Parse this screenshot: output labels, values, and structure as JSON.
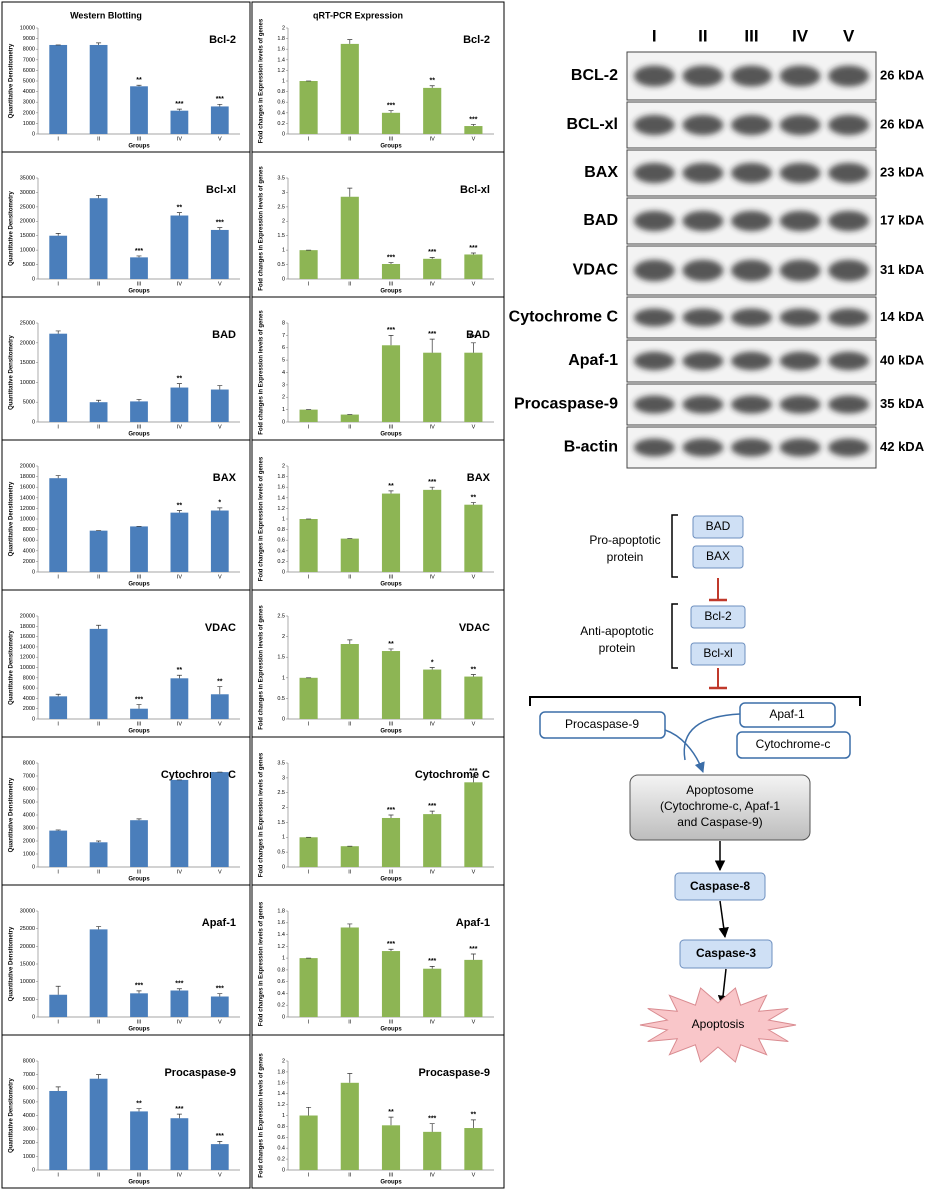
{
  "columns": [
    "Western Blotting",
    "qRT-PCR Expression"
  ],
  "chart_data": [
    {
      "type": "bar",
      "title": "Bcl-2",
      "y_label": "Quantitative Densitometry",
      "x_label": "Groups",
      "color": "#4a7ebb",
      "categories": [
        "I",
        "II",
        "III",
        "IV",
        "V"
      ],
      "values": [
        8400,
        8400,
        4500,
        2200,
        2600
      ],
      "errors": [
        0,
        200,
        100,
        150,
        200
      ],
      "annotations": [
        null,
        null,
        "**",
        "***",
        "***"
      ],
      "ylim": [
        0,
        10000
      ],
      "yticks": [
        0,
        1000,
        2000,
        3000,
        4000,
        5000,
        6000,
        7000,
        8000,
        9000,
        10000
      ]
    },
    {
      "type": "bar",
      "title": "Bcl-2",
      "y_label": "Fold changes in Expression levels of genes",
      "x_label": "Groups",
      "color": "#8db554",
      "categories": [
        "I",
        "II",
        "III",
        "IV",
        "V"
      ],
      "values": [
        1,
        1.7,
        0.4,
        0.87,
        0.15
      ],
      "errors": [
        0,
        0.08,
        0.04,
        0.04,
        0.03
      ],
      "annotations": [
        null,
        null,
        "***",
        "**",
        "***"
      ],
      "ylim": [
        0,
        2
      ],
      "yticks": [
        0,
        0.2,
        0.4,
        0.6,
        0.8,
        1,
        1.2,
        1.4,
        1.6,
        1.8,
        2
      ]
    },
    {
      "type": "bar",
      "title": "Bcl-xl",
      "y_label": "Quantitative Densitometry",
      "x_label": "Groups",
      "color": "#4a7ebb",
      "categories": [
        "I",
        "II",
        "III",
        "IV",
        "V"
      ],
      "values": [
        15000,
        28000,
        7500,
        22000,
        17000
      ],
      "errors": [
        800,
        1000,
        500,
        1000,
        800
      ],
      "annotations": [
        null,
        null,
        "***",
        "**",
        "***"
      ],
      "ylim": [
        0,
        35000
      ],
      "yticks": [
        0,
        5000,
        10000,
        15000,
        20000,
        25000,
        30000,
        35000
      ]
    },
    {
      "type": "bar",
      "title": "Bcl-xl",
      "y_label": "Fold changes in Expression levels of genes",
      "x_label": "Groups",
      "color": "#8db554",
      "categories": [
        "I",
        "II",
        "III",
        "IV",
        "V"
      ],
      "values": [
        1,
        2.85,
        0.52,
        0.7,
        0.85
      ],
      "errors": [
        0,
        0.3,
        0.05,
        0.05,
        0.05
      ],
      "annotations": [
        null,
        null,
        "***",
        "***",
        "***"
      ],
      "ylim": [
        0,
        3.5
      ],
      "yticks": [
        0,
        0.5,
        1,
        1.5,
        2,
        2.5,
        3,
        3.5
      ]
    },
    {
      "type": "bar",
      "title": "BAD",
      "y_label": "Quantitative Densitometry",
      "x_label": "Groups",
      "color": "#4a7ebb",
      "categories": [
        "I",
        "II",
        "III",
        "IV",
        "V"
      ],
      "values": [
        22300,
        5000,
        5200,
        8700,
        8200
      ],
      "errors": [
        700,
        500,
        500,
        1000,
        1000
      ],
      "annotations": [
        null,
        null,
        null,
        "**",
        null
      ],
      "ylim": [
        0,
        25000
      ],
      "yticks": [
        0,
        5000,
        10000,
        15000,
        20000,
        25000
      ]
    },
    {
      "type": "bar",
      "title": "BAD",
      "y_label": "Fold changes in Expression levels of genes",
      "x_label": "Groups",
      "color": "#8db554",
      "categories": [
        "I",
        "II",
        "III",
        "IV",
        "V"
      ],
      "values": [
        1,
        0.6,
        6.2,
        5.6,
        5.6
      ],
      "errors": [
        0,
        0,
        0.8,
        1.1,
        0.8
      ],
      "annotations": [
        null,
        null,
        "***",
        "***",
        "***"
      ],
      "ylim": [
        0,
        8
      ],
      "yticks": [
        0,
        1,
        2,
        3,
        4,
        5,
        6,
        7,
        8
      ]
    },
    {
      "type": "bar",
      "title": "BAX",
      "y_label": "Quantitative Densitometry",
      "x_label": "Groups",
      "color": "#4a7ebb",
      "categories": [
        "I",
        "II",
        "III",
        "IV",
        "V"
      ],
      "values": [
        17700,
        7800,
        8600,
        11200,
        11600
      ],
      "errors": [
        500,
        0,
        0,
        400,
        500
      ],
      "annotations": [
        null,
        null,
        null,
        "**",
        "*"
      ],
      "ylim": [
        0,
        20000
      ],
      "yticks": [
        0,
        2000,
        4000,
        6000,
        8000,
        10000,
        12000,
        14000,
        16000,
        18000,
        20000
      ]
    },
    {
      "type": "bar",
      "title": "BAX",
      "y_label": "Fold changes in Expression levels of genes",
      "x_label": "Groups",
      "color": "#8db554",
      "categories": [
        "I",
        "II",
        "III",
        "IV",
        "V"
      ],
      "values": [
        1,
        0.63,
        1.48,
        1.55,
        1.27
      ],
      "errors": [
        0,
        0,
        0.05,
        0.05,
        0.04
      ],
      "annotations": [
        null,
        null,
        "**",
        "***",
        "**"
      ],
      "ylim": [
        0,
        2
      ],
      "yticks": [
        0,
        0.2,
        0.4,
        0.6,
        0.8,
        1,
        1.2,
        1.4,
        1.6,
        1.8,
        2
      ]
    },
    {
      "type": "bar",
      "title": "VDAC",
      "y_label": "Quantitative Densitometry",
      "x_label": "Groups",
      "color": "#4a7ebb",
      "categories": [
        "I",
        "II",
        "III",
        "IV",
        "V"
      ],
      "values": [
        4400,
        17500,
        2000,
        7900,
        4800
      ],
      "errors": [
        400,
        700,
        800,
        600,
        1500
      ],
      "annotations": [
        null,
        null,
        "***",
        "**",
        "**"
      ],
      "ylim": [
        0,
        20000
      ],
      "yticks": [
        0,
        2000,
        4000,
        6000,
        8000,
        10000,
        12000,
        14000,
        16000,
        18000,
        20000
      ]
    },
    {
      "type": "bar",
      "title": "VDAC",
      "y_label": "Fold changes in Expression levels of genes",
      "x_label": "Groups",
      "color": "#8db554",
      "categories": [
        "I",
        "II",
        "III",
        "IV",
        "V"
      ],
      "values": [
        1,
        1.82,
        1.65,
        1.2,
        1.03
      ],
      "errors": [
        0,
        0.1,
        0.05,
        0.05,
        0.05
      ],
      "annotations": [
        null,
        null,
        "**",
        "*",
        "**"
      ],
      "ylim": [
        0,
        2.5
      ],
      "yticks": [
        0,
        0.5,
        1,
        1.5,
        2,
        2.5
      ]
    },
    {
      "type": "bar",
      "title": "Cytochrome C",
      "y_label": "Quantitative Densitometry",
      "x_label": "Groups",
      "color": "#4a7ebb",
      "categories": [
        "I",
        "II",
        "III",
        "IV",
        "V"
      ],
      "values": [
        2800,
        1900,
        3600,
        6700,
        7300
      ],
      "errors": [
        50,
        100,
        100,
        0,
        0
      ],
      "annotations": [
        null,
        null,
        null,
        null,
        null
      ],
      "ylim": [
        0,
        8000
      ],
      "yticks": [
        0,
        1000,
        2000,
        3000,
        4000,
        5000,
        6000,
        7000,
        8000
      ]
    },
    {
      "type": "bar",
      "title": "Cytochrome C",
      "y_label": "Fold changes in Expression levels of genes",
      "x_label": "Groups",
      "color": "#8db554",
      "categories": [
        "I",
        "II",
        "III",
        "IV",
        "V"
      ],
      "values": [
        1,
        0.7,
        1.65,
        1.78,
        2.85
      ],
      "errors": [
        0,
        0,
        0.1,
        0.1,
        0.2
      ],
      "annotations": [
        null,
        null,
        "***",
        "***",
        "***"
      ],
      "ylim": [
        0,
        3.5
      ],
      "yticks": [
        0,
        0.5,
        1,
        1.5,
        2,
        2.5,
        3,
        3.5
      ]
    },
    {
      "type": "bar",
      "title": "Apaf-1",
      "y_label": "Quantitative Densitometry",
      "x_label": "Groups",
      "color": "#4a7ebb",
      "categories": [
        "I",
        "II",
        "III",
        "IV",
        "V"
      ],
      "values": [
        6300,
        24800,
        6700,
        7500,
        5800
      ],
      "errors": [
        2400,
        800,
        700,
        500,
        800
      ],
      "annotations": [
        null,
        null,
        "***",
        "***",
        "***"
      ],
      "ylim": [
        0,
        30000
      ],
      "yticks": [
        0,
        5000,
        10000,
        15000,
        20000,
        25000,
        30000
      ]
    },
    {
      "type": "bar",
      "title": "Apaf-1",
      "y_label": "Fold changes in Expression levels of genes",
      "x_label": "Groups",
      "color": "#8db554",
      "categories": [
        "I",
        "II",
        "III",
        "IV",
        "V"
      ],
      "values": [
        1,
        1.52,
        1.12,
        0.82,
        0.97
      ],
      "errors": [
        0,
        0.06,
        0.03,
        0.04,
        0.1
      ],
      "annotations": [
        null,
        null,
        "***",
        "***",
        "***"
      ],
      "ylim": [
        0,
        1.8
      ],
      "yticks": [
        0,
        0.2,
        0.4,
        0.6,
        0.8,
        1,
        1.2,
        1.4,
        1.6,
        1.8
      ]
    },
    {
      "type": "bar",
      "title": "Procaspase-9",
      "y_label": "Quantitative Densitometry",
      "x_label": "Groups",
      "color": "#4a7ebb",
      "categories": [
        "I",
        "II",
        "III",
        "IV",
        "V"
      ],
      "values": [
        5800,
        6700,
        4300,
        3800,
        1900
      ],
      "errors": [
        300,
        300,
        200,
        300,
        200
      ],
      "annotations": [
        null,
        null,
        "**",
        "***",
        "***"
      ],
      "ylim": [
        0,
        8000
      ],
      "yticks": [
        0,
        1000,
        2000,
        3000,
        4000,
        5000,
        6000,
        7000,
        8000
      ]
    },
    {
      "type": "bar",
      "title": "Procaspase-9",
      "y_label": "Fold changes in Expression levels of genes",
      "x_label": "Groups",
      "color": "#8db554",
      "categories": [
        "I",
        "II",
        "III",
        "IV",
        "V"
      ],
      "values": [
        1,
        1.6,
        0.82,
        0.7,
        0.77
      ],
      "errors": [
        0.15,
        0.17,
        0.15,
        0.15,
        0.15
      ],
      "annotations": [
        null,
        null,
        "**",
        "***",
        "**"
      ],
      "ylim": [
        0,
        2
      ],
      "yticks": [
        0,
        0.2,
        0.4,
        0.6,
        0.8,
        1,
        1.2,
        1.4,
        1.6,
        1.8,
        2
      ]
    }
  ],
  "blot": {
    "lanes": [
      "I",
      "II",
      "III",
      "IV",
      "V"
    ],
    "rows": [
      {
        "name": "BCL-2",
        "size": "26 kDA"
      },
      {
        "name": "BCL-xl",
        "size": "26 kDA"
      },
      {
        "name": "BAX",
        "size": "23 kDA"
      },
      {
        "name": "BAD",
        "size": "17 kDA"
      },
      {
        "name": "VDAC",
        "size": "31 kDA"
      },
      {
        "name": "Cytochrome C",
        "size": "14 kDA"
      },
      {
        "name": "Apaf-1",
        "size": "40 kDA"
      },
      {
        "name": "Procaspase-9",
        "size": "35 kDA"
      },
      {
        "name": "B-actin",
        "size": "42 kDA"
      }
    ]
  },
  "diagram": {
    "pro_label": [
      "Pro-apoptotic",
      "protein"
    ],
    "pro": [
      "BAD",
      "BAX"
    ],
    "anti_label": [
      "Anti-apoptotic",
      "protein"
    ],
    "anti": [
      "Bcl-2",
      "Bcl-xl"
    ],
    "procaspase": "Procaspase-9",
    "apaf": "Apaf-1",
    "cytc": "Cytochrome-c",
    "apoptosome": [
      "Apoptosome",
      "(Cytochrome-c, Apaf-1",
      "and Caspase-9)"
    ],
    "caspase8": "Caspase-8",
    "caspase3": "Caspase-3",
    "apoptosis": "Apoptosis"
  }
}
